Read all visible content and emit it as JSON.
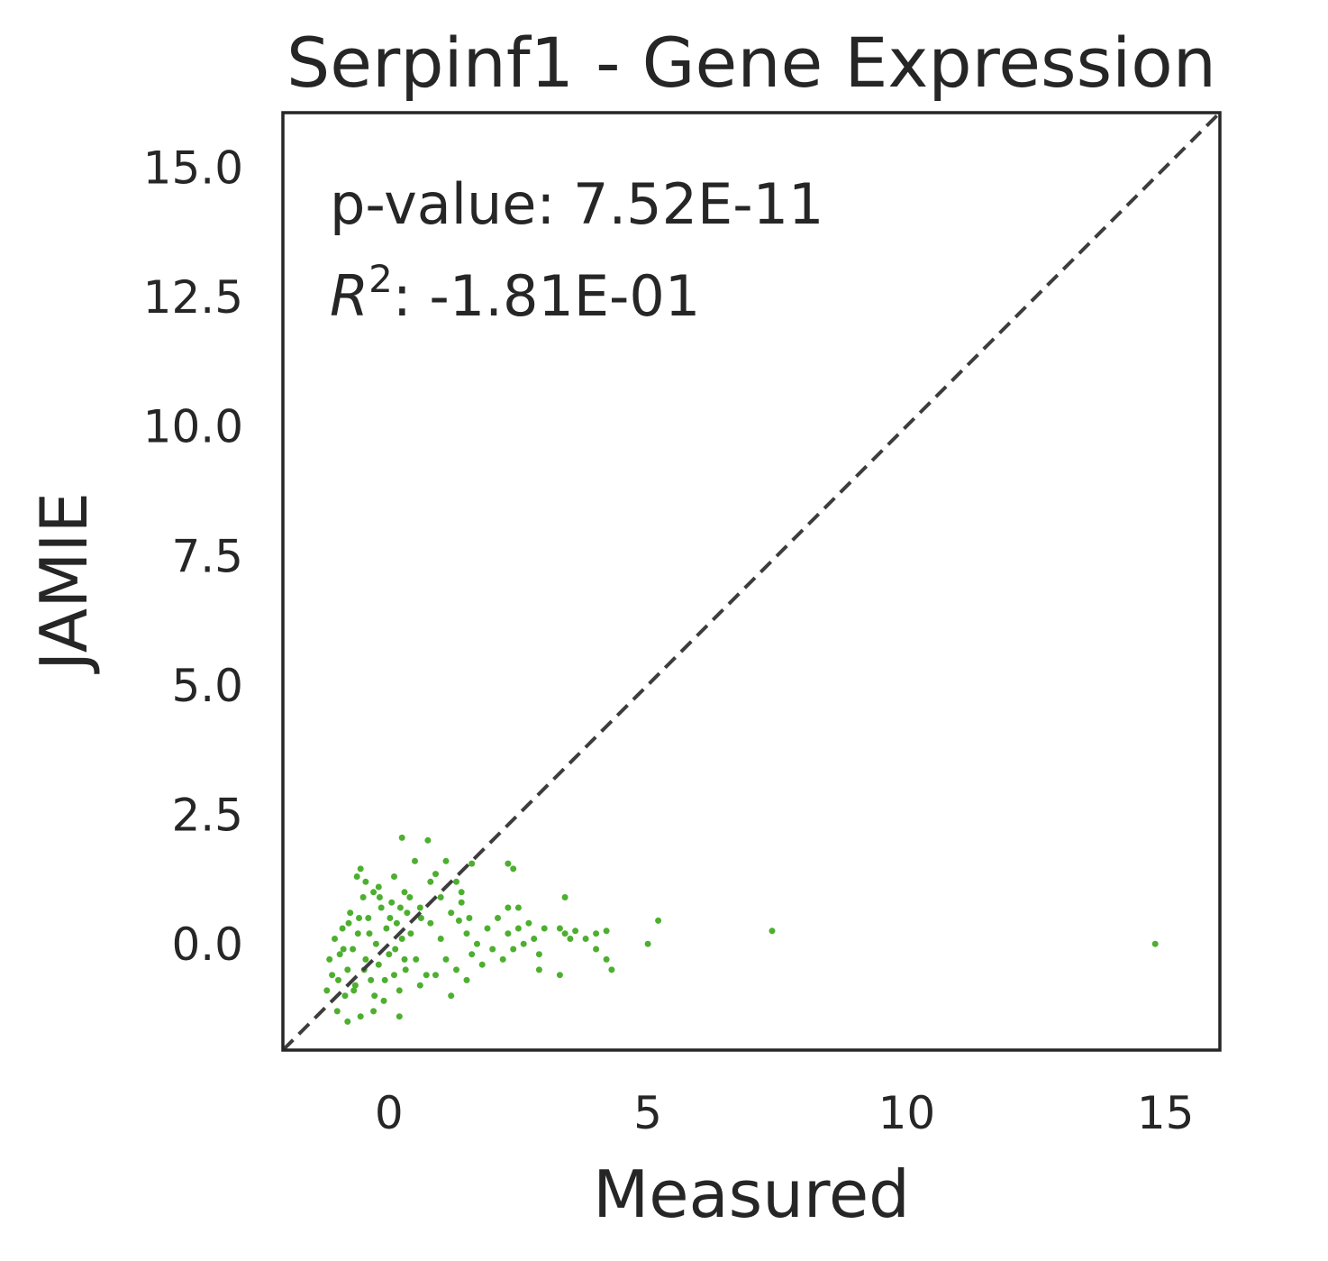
{
  "chart_data": {
    "type": "scatter",
    "title": "Serpinf1 - Gene Expression",
    "xlabel": "Measured",
    "ylabel": "JAMIE",
    "xlim": [
      -2.05,
      16.05
    ],
    "ylim": [
      -2.05,
      16.05
    ],
    "xticks": [
      0,
      5,
      10,
      15
    ],
    "xtick_labels": [
      "0",
      "5",
      "10",
      "15"
    ],
    "yticks": [
      0,
      2.5,
      5,
      7.5,
      10,
      12.5,
      15
    ],
    "ytick_labels": [
      "0.0",
      "2.5",
      "5.0",
      "7.5",
      "10.0",
      "12.5",
      "15.0"
    ],
    "grid": false,
    "identity_line": {
      "from": [
        -2.05,
        -2.05
      ],
      "to": [
        16.05,
        16.05
      ],
      "style": "dashed",
      "color": "#3d3d3d"
    },
    "annotations": {
      "pvalue_label": "p-value: 7.52E-11",
      "r2_symbol": "R",
      "r2_superscript": "2",
      "r2_value": ": -1.81E-01"
    },
    "colors": {
      "points": "#4daf2f",
      "axes": "#262626",
      "identity": "#3d3d3d"
    },
    "series": [
      {
        "values_xy": [
          [
            -1.2,
            -0.9
          ],
          [
            -1.1,
            -0.6
          ],
          [
            -1.0,
            -1.3
          ],
          [
            -0.95,
            -0.2
          ],
          [
            -0.9,
            0.3
          ],
          [
            -0.85,
            -1.0
          ],
          [
            -0.8,
            -0.5
          ],
          [
            -0.75,
            0.6
          ],
          [
            -0.7,
            -0.1
          ],
          [
            -0.65,
            -0.8
          ],
          [
            -0.6,
            0.2
          ],
          [
            -0.55,
            -1.4
          ],
          [
            -0.5,
            0.9
          ],
          [
            -0.45,
            -0.3
          ],
          [
            -0.4,
            0.5
          ],
          [
            -0.35,
            -0.7
          ],
          [
            -0.3,
            1.0
          ],
          [
            -0.25,
            0.0
          ],
          [
            -0.2,
            -0.4
          ],
          [
            -0.15,
            0.7
          ],
          [
            -0.1,
            -1.1
          ],
          [
            -0.05,
            0.3
          ],
          [
            0.0,
            -0.2
          ],
          [
            0.05,
            0.8
          ],
          [
            0.1,
            -0.6
          ],
          [
            0.15,
            0.4
          ],
          [
            0.2,
            -0.9
          ],
          [
            0.25,
            0.1
          ],
          [
            0.3,
            -0.3
          ],
          [
            0.35,
            0.6
          ],
          [
            -1.15,
            -0.3
          ],
          [
            -1.05,
            0.1
          ],
          [
            -0.98,
            -0.7
          ],
          [
            -0.88,
            -0.1
          ],
          [
            -0.78,
            0.4
          ],
          [
            -0.68,
            -0.9
          ],
          [
            -0.58,
            0.5
          ],
          [
            -0.48,
            -0.5
          ],
          [
            -0.38,
            0.2
          ],
          [
            -0.28,
            -1.0
          ],
          [
            -0.18,
            0.9
          ],
          [
            -0.08,
            -0.7
          ],
          [
            0.02,
            0.5
          ],
          [
            0.12,
            -0.1
          ],
          [
            0.22,
            0.7
          ],
          [
            0.32,
            -0.5
          ],
          [
            0.42,
            0.2
          ],
          [
            0.52,
            -0.3
          ],
          [
            0.62,
            0.5
          ],
          [
            0.72,
            -0.6
          ],
          [
            -0.62,
            1.3
          ],
          [
            -0.55,
            1.45
          ],
          [
            -0.45,
            1.2
          ],
          [
            -0.2,
            1.1
          ],
          [
            0.1,
            1.3
          ],
          [
            0.3,
            1.0
          ],
          [
            0.5,
            1.6
          ],
          [
            0.75,
            2.0
          ],
          [
            0.25,
            2.05
          ],
          [
            0.9,
            1.35
          ],
          [
            0.4,
            0.9
          ],
          [
            0.6,
            0.7
          ],
          [
            0.8,
            0.4
          ],
          [
            1.0,
            0.1
          ],
          [
            1.1,
            -0.3
          ],
          [
            1.2,
            0.6
          ],
          [
            1.3,
            -0.5
          ],
          [
            1.4,
            1.0
          ],
          [
            1.5,
            0.2
          ],
          [
            1.6,
            -0.2
          ],
          [
            1.1,
            1.6
          ],
          [
            1.3,
            1.2
          ],
          [
            1.4,
            0.8
          ],
          [
            1.55,
            0.5
          ],
          [
            1.7,
            0.0
          ],
          [
            1.8,
            -0.4
          ],
          [
            1.9,
            0.3
          ],
          [
            2.0,
            -0.1
          ],
          [
            2.1,
            0.5
          ],
          [
            2.2,
            -0.3
          ],
          [
            2.3,
            0.2
          ],
          [
            2.4,
            -0.1
          ],
          [
            2.5,
            0.3
          ],
          [
            2.6,
            0.0
          ],
          [
            2.7,
            0.4
          ],
          [
            2.8,
            0.1
          ],
          [
            2.9,
            -0.2
          ],
          [
            3.0,
            0.3
          ],
          [
            2.3,
            1.55
          ],
          [
            2.4,
            1.45
          ],
          [
            2.3,
            0.7
          ],
          [
            2.5,
            0.7
          ],
          [
            1.6,
            1.55
          ],
          [
            1.35,
            0.45
          ],
          [
            1.0,
            0.9
          ],
          [
            0.8,
            1.2
          ],
          [
            0.6,
            -0.8
          ],
          [
            0.9,
            -0.6
          ],
          [
            1.2,
            -1.0
          ],
          [
            1.5,
            -0.7
          ],
          [
            3.3,
            0.3
          ],
          [
            3.4,
            0.2
          ],
          [
            3.5,
            0.1
          ],
          [
            3.4,
            0.9
          ],
          [
            3.6,
            0.25
          ],
          [
            3.8,
            0.1
          ],
          [
            4.0,
            0.2
          ],
          [
            4.2,
            0.25
          ],
          [
            4.3,
            -0.5
          ],
          [
            4.2,
            -0.3
          ],
          [
            3.3,
            -0.6
          ],
          [
            2.9,
            -0.5
          ],
          [
            4.0,
            -0.1
          ],
          [
            5.0,
            0.0
          ],
          [
            5.2,
            0.45
          ],
          [
            7.4,
            0.25
          ],
          [
            14.8,
            0.0
          ],
          [
            -0.3,
            -1.3
          ],
          [
            0.2,
            -1.4
          ],
          [
            -0.8,
            -1.5
          ]
        ]
      }
    ]
  }
}
